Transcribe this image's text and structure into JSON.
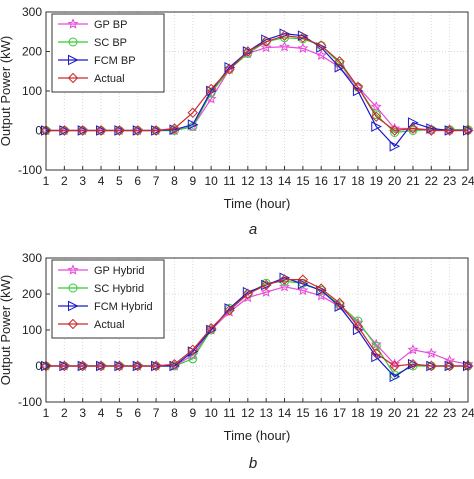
{
  "colors": {
    "GP": "#e64bd9",
    "SC": "#33cc33",
    "FCM": "#1a1acc",
    "Actual": "#cc2a2a"
  },
  "markers": {
    "GP": "star",
    "SC": "circle",
    "FCM": "triangle-right",
    "Actual": "diamond"
  },
  "chart_data": [
    {
      "type": "line",
      "caption": "a",
      "xlabel": "Time (hour)",
      "ylabel": "Output Power (kW)",
      "xlim": [
        1,
        24
      ],
      "ylim": [
        -100,
        300
      ],
      "x_ticks": [
        1,
        2,
        3,
        4,
        5,
        6,
        7,
        8,
        9,
        10,
        11,
        12,
        13,
        14,
        15,
        16,
        17,
        18,
        19,
        20,
        21,
        22,
        23,
        24
      ],
      "y_ticks": [
        -100,
        0,
        100,
        200,
        300
      ],
      "grid": true,
      "legend_position": "top-left",
      "x": [
        1,
        2,
        3,
        4,
        5,
        6,
        7,
        8,
        9,
        10,
        11,
        12,
        13,
        14,
        15,
        16,
        17,
        18,
        19,
        20,
        21,
        22,
        23,
        24
      ],
      "series": [
        {
          "name": "GP BP",
          "key": "GP",
          "values": [
            0,
            0,
            0,
            0,
            0,
            0,
            0,
            0,
            10,
            80,
            155,
            195,
            210,
            212,
            208,
            190,
            160,
            110,
            60,
            5,
            5,
            2,
            2,
            2
          ]
        },
        {
          "name": "SC BP",
          "key": "SC",
          "values": [
            0,
            0,
            0,
            0,
            0,
            0,
            0,
            0,
            10,
            95,
            155,
            195,
            225,
            235,
            232,
            215,
            170,
            110,
            40,
            -5,
            0,
            2,
            2,
            2
          ]
        },
        {
          "name": "FCM BP",
          "key": "FCM",
          "values": [
            0,
            0,
            0,
            0,
            0,
            0,
            0,
            2,
            15,
            100,
            160,
            200,
            230,
            245,
            240,
            210,
            160,
            100,
            10,
            -40,
            20,
            5,
            0,
            0
          ]
        },
        {
          "name": "Actual",
          "key": "Actual",
          "values": [
            0,
            0,
            0,
            0,
            0,
            0,
            0,
            5,
            45,
            105,
            155,
            200,
            225,
            240,
            235,
            215,
            175,
            110,
            35,
            0,
            5,
            0,
            0,
            0
          ]
        }
      ]
    },
    {
      "type": "line",
      "caption": "b",
      "xlabel": "Time (hour)",
      "ylabel": "Output Power (kW)",
      "xlim": [
        1,
        24
      ],
      "ylim": [
        -100,
        300
      ],
      "x_ticks": [
        1,
        2,
        3,
        4,
        5,
        6,
        7,
        8,
        9,
        10,
        11,
        12,
        13,
        14,
        15,
        16,
        17,
        18,
        19,
        20,
        21,
        22,
        23,
        24
      ],
      "y_ticks": [
        -100,
        0,
        100,
        200,
        300
      ],
      "grid": true,
      "legend_position": "top-left",
      "x": [
        1,
        2,
        3,
        4,
        5,
        6,
        7,
        8,
        9,
        10,
        11,
        12,
        13,
        14,
        15,
        16,
        17,
        18,
        19,
        20,
        21,
        22,
        23,
        24
      ],
      "series": [
        {
          "name": "GP Hybrid",
          "key": "GP",
          "values": [
            0,
            0,
            0,
            0,
            0,
            0,
            0,
            0,
            30,
            100,
            150,
            190,
            205,
            220,
            210,
            195,
            165,
            120,
            60,
            5,
            45,
            35,
            15,
            5
          ]
        },
        {
          "name": "SC Hybrid",
          "key": "SC",
          "values": [
            0,
            0,
            0,
            0,
            0,
            0,
            0,
            0,
            20,
            100,
            160,
            200,
            230,
            235,
            230,
            210,
            170,
            125,
            55,
            -25,
            0,
            0,
            0,
            0
          ]
        },
        {
          "name": "FCM Hybrid",
          "key": "FCM",
          "values": [
            0,
            0,
            0,
            0,
            0,
            0,
            0,
            0,
            40,
            100,
            160,
            205,
            225,
            245,
            228,
            210,
            165,
            100,
            25,
            -30,
            5,
            0,
            0,
            0
          ]
        },
        {
          "name": "Actual",
          "key": "Actual",
          "values": [
            0,
            0,
            0,
            0,
            0,
            0,
            0,
            5,
            45,
            105,
            155,
            200,
            225,
            240,
            240,
            215,
            175,
            110,
            35,
            0,
            5,
            0,
            0,
            0
          ]
        }
      ]
    }
  ]
}
